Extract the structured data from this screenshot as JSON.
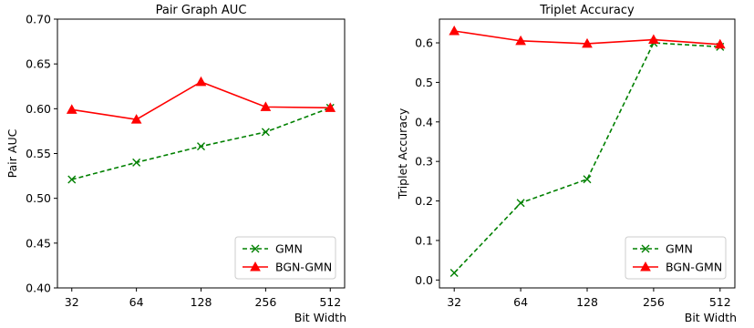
{
  "chart_data": [
    {
      "type": "line",
      "title": "Pair Graph AUC",
      "xlabel": "Bit Width",
      "ylabel": "Pair AUC",
      "categories": [
        "32",
        "64",
        "128",
        "256",
        "512"
      ],
      "ylim": [
        0.4,
        0.7
      ],
      "yticks": [
        "0.40",
        "0.45",
        "0.50",
        "0.55",
        "0.60",
        "0.65",
        "0.70"
      ],
      "legend_position": "lower-right",
      "series": [
        {
          "name": "GMN",
          "values": [
            0.521,
            0.54,
            0.558,
            0.574,
            0.601
          ],
          "color": "#008000",
          "style": "dashed",
          "marker": "x"
        },
        {
          "name": "BGN-GMN",
          "values": [
            0.599,
            0.588,
            0.63,
            0.602,
            0.601
          ],
          "color": "#ff0000",
          "style": "solid",
          "marker": "triangle"
        }
      ]
    },
    {
      "type": "line",
      "title": "Triplet Accuracy",
      "xlabel": "Bit Width",
      "ylabel": "Triplet Accuracy",
      "categories": [
        "32",
        "64",
        "128",
        "256",
        "512"
      ],
      "ylim": [
        -0.02,
        0.66
      ],
      "yticks": [
        "0.0",
        "0.1",
        "0.2",
        "0.3",
        "0.4",
        "0.5",
        "0.6"
      ],
      "legend_position": "lower-right",
      "series": [
        {
          "name": "GMN",
          "values": [
            0.018,
            0.195,
            0.255,
            0.6,
            0.59
          ],
          "color": "#008000",
          "style": "dashed",
          "marker": "x"
        },
        {
          "name": "BGN-GMN",
          "values": [
            0.63,
            0.605,
            0.598,
            0.608,
            0.596
          ],
          "color": "#ff0000",
          "style": "solid",
          "marker": "triangle"
        }
      ]
    }
  ]
}
